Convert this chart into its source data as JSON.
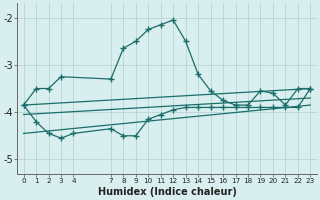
{
  "xlabel": "Humidex (Indice chaleur)",
  "xlim": [
    -0.5,
    23.5
  ],
  "ylim": [
    -5.3,
    -1.7
  ],
  "yticks": [
    -5,
    -4,
    -3,
    -2
  ],
  "xticks": [
    0,
    1,
    2,
    3,
    4,
    7,
    8,
    9,
    10,
    11,
    12,
    13,
    14,
    15,
    16,
    17,
    18,
    19,
    20,
    21,
    22,
    23
  ],
  "bg_color": "#d9eeee",
  "grid_color": "#c0dcdc",
  "line_color": "#1a6e6a",
  "line1_x": [
    0,
    1,
    2,
    3,
    7,
    8,
    9,
    10,
    11,
    12,
    13,
    14,
    15,
    16,
    17,
    18,
    19,
    20,
    21,
    22,
    23
  ],
  "line1_y": [
    -3.85,
    -3.5,
    -3.5,
    -3.25,
    -3.3,
    -2.65,
    -2.5,
    -2.25,
    -2.15,
    -2.05,
    -2.5,
    -3.2,
    -3.55,
    -3.75,
    -3.85,
    -3.85,
    -3.55,
    -3.6,
    -3.85,
    -3.5,
    -3.5
  ],
  "line2_x": [
    0,
    1,
    2,
    3,
    4,
    7,
    8,
    9,
    10,
    11,
    12,
    13,
    14,
    15,
    16,
    17,
    18,
    19,
    20,
    21,
    22,
    23
  ],
  "line2_y": [
    -3.85,
    -4.2,
    -4.45,
    -4.55,
    -4.45,
    -4.35,
    -4.5,
    -4.5,
    -4.15,
    -4.05,
    -3.95,
    -3.9,
    -3.9,
    -3.9,
    -3.9,
    -3.9,
    -3.9,
    -3.9,
    -3.9,
    -3.9,
    -3.9,
    -3.5
  ],
  "line3_x": [
    0,
    23
  ],
  "line3_y": [
    -3.85,
    -3.5
  ],
  "line4_x": [
    0,
    23
  ],
  "line4_y": [
    -4.05,
    -3.7
  ],
  "line5_x": [
    0,
    23
  ],
  "line5_y": [
    -4.45,
    -3.85
  ]
}
